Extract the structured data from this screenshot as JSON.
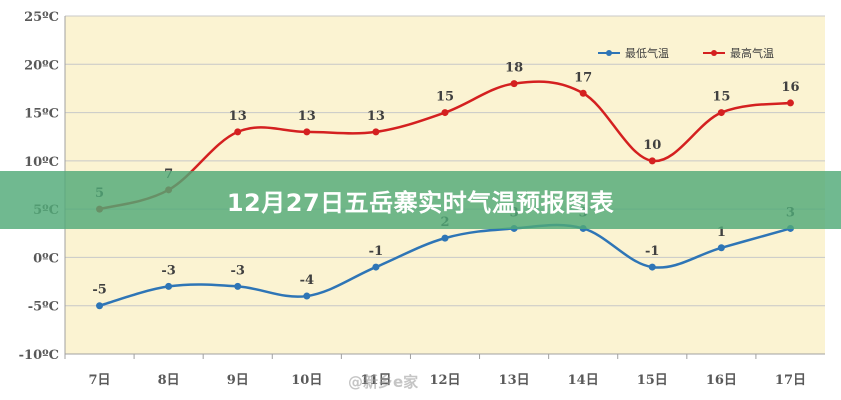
{
  "banner": {
    "title": "12月27日五岳寨实时气温预报图表"
  },
  "watermark": "@新乡e家",
  "colors": {
    "plot_background": "#fbf3d2",
    "grid": "#c8c8c8",
    "low_series": "#2e75b6",
    "high_series": "#d42020",
    "banner": "#50aa78"
  },
  "chart_data": {
    "type": "line",
    "categories": [
      "7日",
      "8日",
      "9日",
      "10日",
      "11日",
      "12日",
      "13日",
      "14日",
      "15日",
      "16日",
      "17日"
    ],
    "y_ticks": [
      "25ºC",
      "20ºC",
      "15ºC",
      "10ºC",
      "5ºC",
      "0ºC",
      "-5ºC",
      "-10ºC"
    ],
    "ylim": [
      -10,
      25
    ],
    "y_step": 5,
    "grid": true,
    "legend_position": "top-right",
    "series": [
      {
        "name": "最低气温",
        "color": "#2e75b6",
        "values": [
          -5,
          -3,
          -3,
          -4,
          -1,
          2,
          3,
          3,
          -1,
          1,
          3
        ]
      },
      {
        "name": "最高气温",
        "color": "#d42020",
        "values": [
          5,
          7,
          13,
          13,
          13,
          15,
          18,
          17,
          10,
          15,
          16
        ]
      }
    ]
  }
}
